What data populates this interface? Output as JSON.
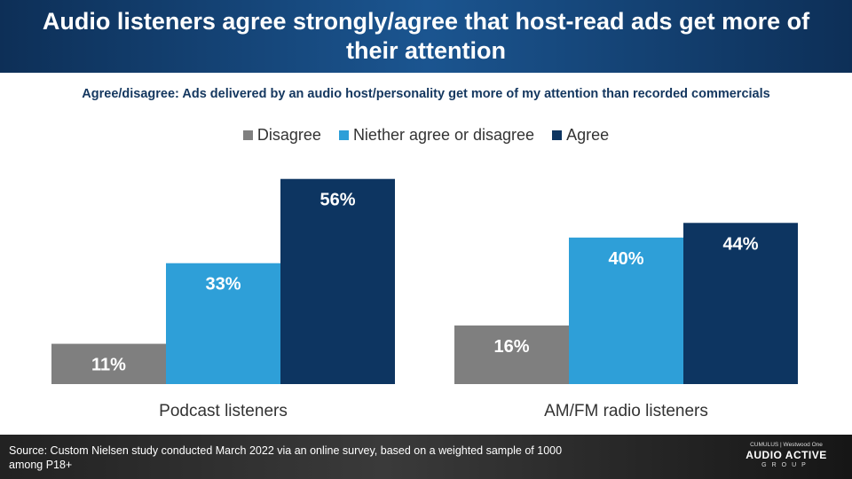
{
  "header": {
    "title": "Audio listeners agree strongly/agree that host-read ads get more of their attention"
  },
  "subtitle": "Agree/disagree: Ads delivered by an audio host/personality  get more of my attention than recorded commercials",
  "colors": {
    "disagree": "#7f7f7f",
    "neither": "#2e9fd8",
    "agree": "#0d3561",
    "header_bg": "#0d2f57",
    "subtitle_text": "#14375f"
  },
  "chart_data": {
    "type": "bar",
    "categories": [
      "Podcast listeners",
      "AM/FM radio listeners"
    ],
    "series": [
      {
        "name": "Disagree",
        "values": [
          11,
          16
        ],
        "labels": [
          "11%",
          "16%"
        ]
      },
      {
        "name": "Niether agree or disagree",
        "values": [
          33,
          40
        ],
        "labels": [
          "33%",
          "40%"
        ]
      },
      {
        "name": "Agree",
        "values": [
          56,
          44
        ],
        "labels": [
          "56%",
          "44%"
        ]
      }
    ],
    "ylim": [
      0,
      60
    ],
    "grid": false,
    "legend_position": "top"
  },
  "footer": {
    "source": "Source: Custom Nielsen study conducted March 2022 via an online survey, based on a weighted sample of 1000 among P18+",
    "logo_top": "CUMULUS | Westwood One",
    "logo_main": "AUDIO ACTIVE",
    "logo_sub": "GROUP"
  }
}
